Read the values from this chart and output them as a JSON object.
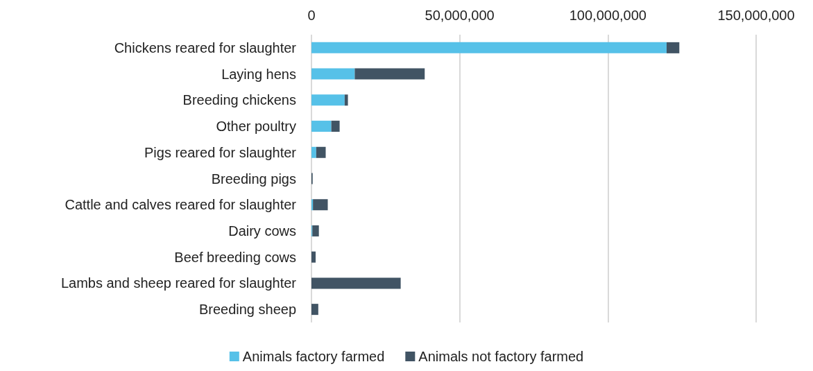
{
  "chart_data": {
    "type": "bar",
    "orientation": "horizontal",
    "stacked": true,
    "categories": [
      "Chickens reared for slaughter",
      "Laying hens",
      "Breeding chickens",
      "Other poultry",
      "Pigs reared for slaughter",
      "Breeding pigs",
      "Cattle and calves reared for slaughter",
      "Dairy cows",
      "Beef breeding cows",
      "Lambs and sheep reared for slaughter",
      "Breeding sheep"
    ],
    "series": [
      {
        "name": "Animals factory farmed",
        "color": "#56c1e8",
        "values": [
          119800000,
          14600000,
          11200000,
          6700000,
          1600000,
          null,
          500000,
          300000,
          0,
          0,
          0
        ]
      },
      {
        "name": "Animals not factory farmed",
        "color": "#415464",
        "values": [
          4300000,
          23600000,
          1100000,
          2800000,
          3200000,
          400000,
          5000000,
          2200000,
          1400000,
          30100000,
          2300000
        ]
      }
    ],
    "xlim": [
      0,
      150000000
    ],
    "xticks": [
      {
        "value": 0,
        "label": "0"
      },
      {
        "value": 50000000,
        "label": "50,000,000"
      },
      {
        "value": 100000000,
        "label": "100,000,000"
      },
      {
        "value": 150000000,
        "label": "150,000,000"
      }
    ],
    "grid": "x",
    "legend": "bottom"
  }
}
